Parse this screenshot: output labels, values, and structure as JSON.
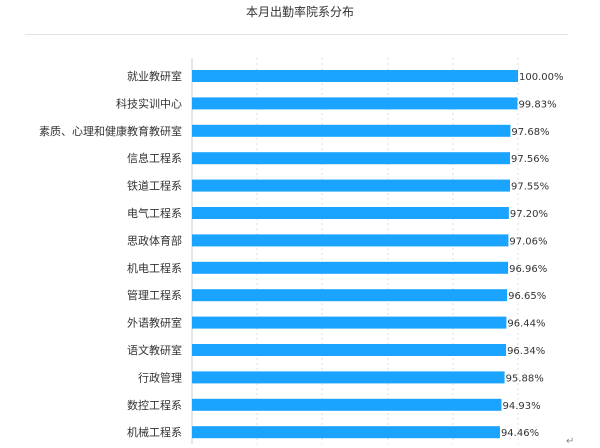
{
  "chart_data": {
    "type": "bar",
    "orientation": "horizontal",
    "title": "本月出勤率院系分布",
    "categories": [
      "就业教研室",
      "科技实训中心",
      "素质、心理和健康教育教研室",
      "信息工程系",
      "铁道工程系",
      "电气工程系",
      "思政体育部",
      "机电工程系",
      "管理工程系",
      "外语教研室",
      "语文教研室",
      "行政管理",
      "数控工程系",
      "机械工程系"
    ],
    "values": [
      100.0,
      99.83,
      97.68,
      97.56,
      97.55,
      97.2,
      97.06,
      96.96,
      96.65,
      96.44,
      96.34,
      95.88,
      94.93,
      94.46
    ],
    "value_labels": [
      "100.00%",
      "99.83%",
      "97.68%",
      "97.56%",
      "97.55%",
      "97.20%",
      "97.06%",
      "96.96%",
      "96.65%",
      "96.44%",
      "96.34%",
      "95.88%",
      "94.93%",
      "94.46%"
    ],
    "xlim": [
      0,
      100
    ],
    "bar_color": "#1aa3ff",
    "grid": true,
    "legend": "none"
  },
  "colors": {
    "bar": "#1aa3ff",
    "text": "#333333",
    "grid": "#dcdcdc"
  },
  "footer": {
    "return_symbol": "↵"
  }
}
